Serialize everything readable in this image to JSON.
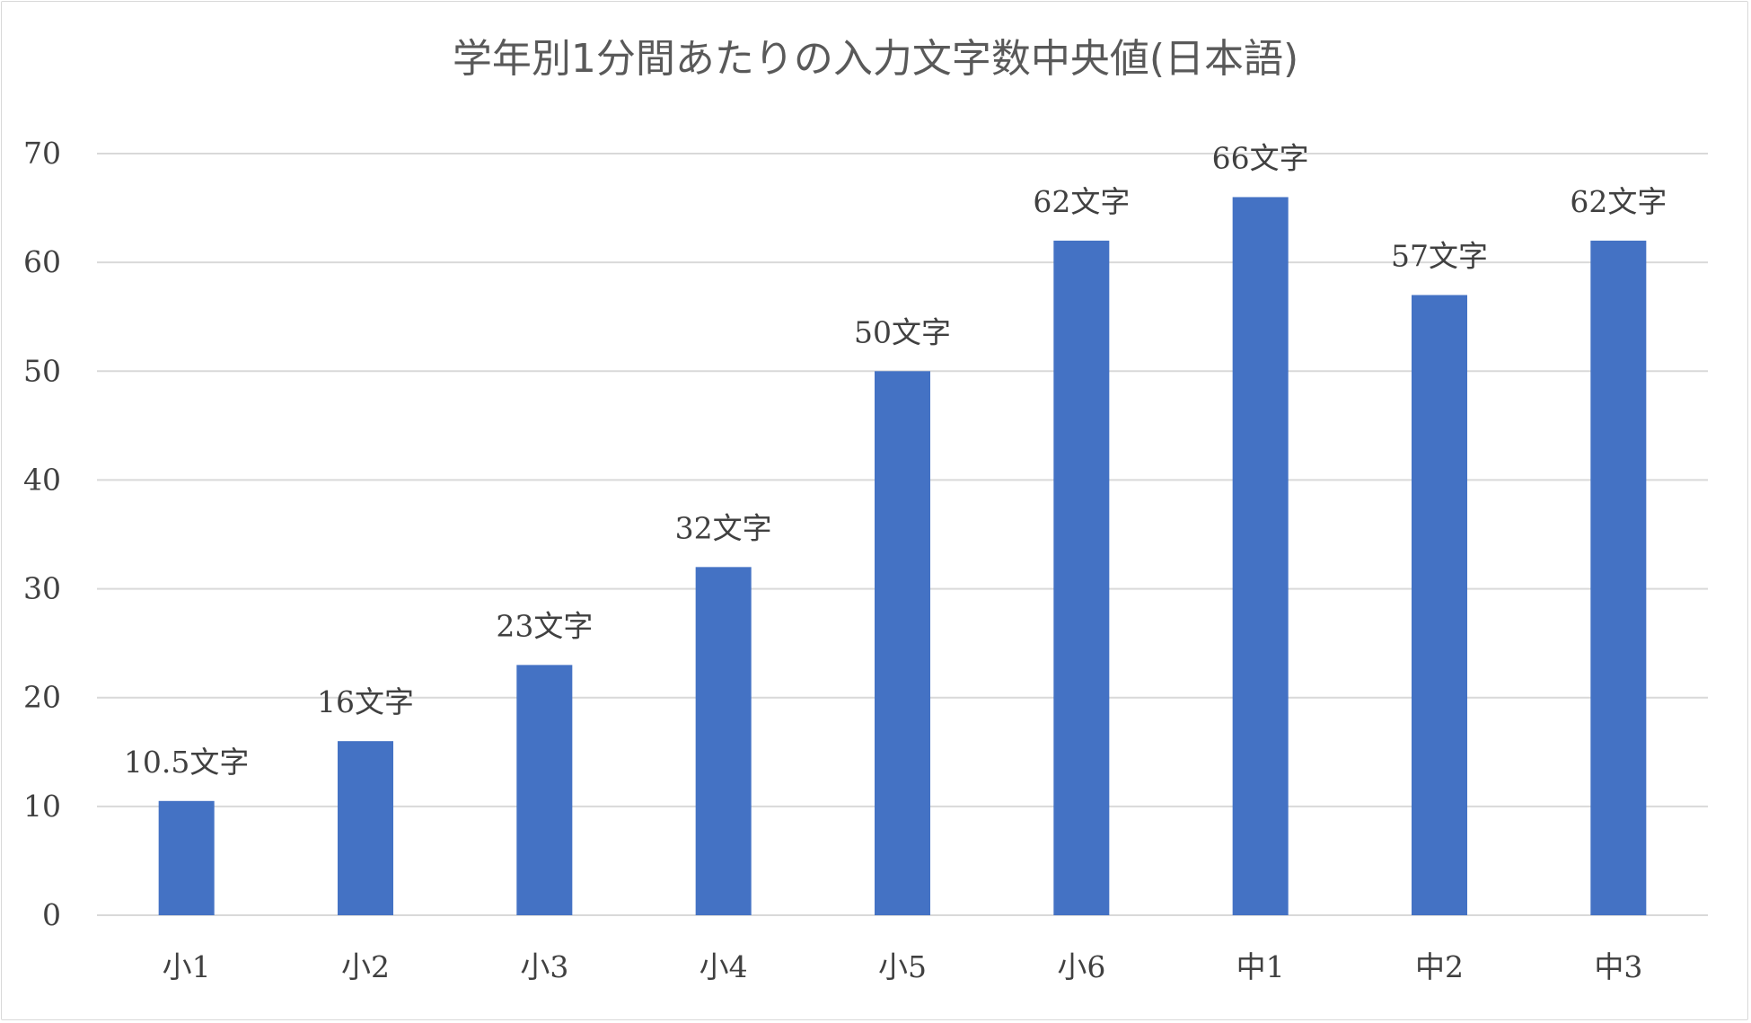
{
  "chart_data": {
    "type": "bar",
    "title": "学年別1分間あたりの入力文字数中央値(日本語)",
    "categories": [
      "小1",
      "小2",
      "小3",
      "小4",
      "小5",
      "小6",
      "中1",
      "中2",
      "中3"
    ],
    "values": [
      10.5,
      16,
      23,
      32,
      50,
      62,
      66,
      57,
      62
    ],
    "data_labels": [
      "10.5文字",
      "16文字",
      "23文字",
      "32文字",
      "50文字",
      "62文字",
      "66文字",
      "57文字",
      "62文字"
    ],
    "xlabel": "",
    "ylabel": "",
    "ylim": [
      0,
      70
    ],
    "y_ticks": [
      0,
      10,
      20,
      30,
      40,
      50,
      60,
      70
    ],
    "grid": true,
    "legend": "none",
    "colors": {
      "bar": "#4472c4",
      "grid": "#d9d9d9",
      "axis": "#d9d9d9"
    }
  }
}
